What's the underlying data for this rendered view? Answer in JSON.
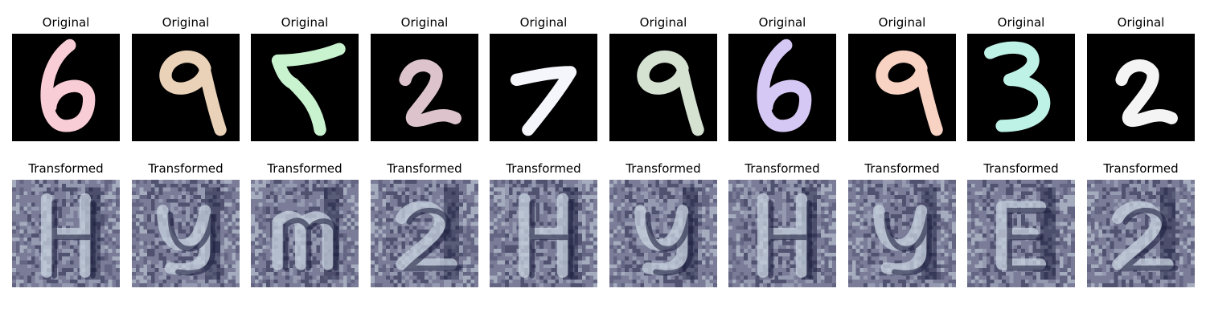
{
  "figure": {
    "originals": [
      {
        "title": "Original",
        "digit": "6",
        "color": "#f9cdd6"
      },
      {
        "title": "Original",
        "digit": "9",
        "color": "#ead2b8"
      },
      {
        "title": "Original",
        "digit": "5",
        "color": "#c9f2cf"
      },
      {
        "title": "Original",
        "digit": "2",
        "color": "#ddc4cc"
      },
      {
        "title": "Original",
        "digit": "7",
        "color": "#f4f6fb"
      },
      {
        "title": "Original",
        "digit": "9",
        "color": "#d5e2d2"
      },
      {
        "title": "Original",
        "digit": "6",
        "color": "#d6c8f4"
      },
      {
        "title": "Original",
        "digit": "9",
        "color": "#f8d2c3"
      },
      {
        "title": "Original",
        "digit": "3",
        "color": "#bff2e6"
      },
      {
        "title": "Original",
        "digit": "2",
        "color": "#f4f4f4"
      }
    ],
    "transformed": [
      {
        "title": "Transformed",
        "glyph": "H"
      },
      {
        "title": "Transformed",
        "glyph": "y"
      },
      {
        "title": "Transformed",
        "glyph": "m"
      },
      {
        "title": "Transformed",
        "glyph": "2"
      },
      {
        "title": "Transformed",
        "glyph": "H"
      },
      {
        "title": "Transformed",
        "glyph": "y"
      },
      {
        "title": "Transformed",
        "glyph": "H"
      },
      {
        "title": "Transformed",
        "glyph": "y"
      },
      {
        "title": "Transformed",
        "glyph": "E"
      },
      {
        "title": "Transformed",
        "glyph": "2"
      }
    ],
    "palette": {
      "original_background": "#000000",
      "transformed_background": "#7a7c98",
      "transformed_dark": "#1e1f40",
      "transformed_light": "#c8d3df"
    }
  }
}
